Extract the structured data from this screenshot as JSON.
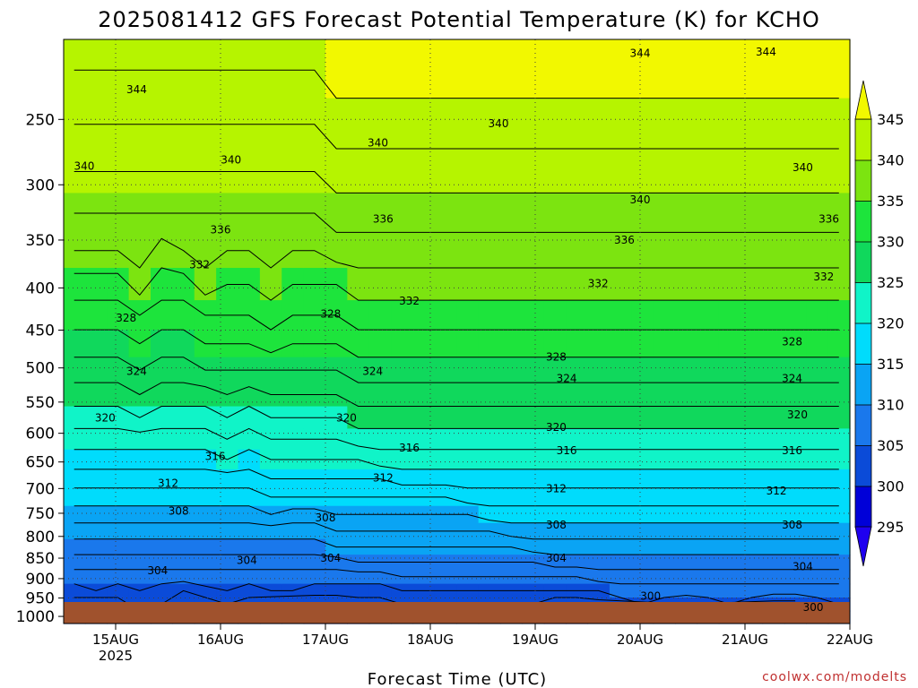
{
  "chart_data": {
    "type": "heatmap",
    "title": "2025081412 GFS Forecast Potential Temperature (K) for KCHO",
    "xlabel": "Forecast Time (UTC)",
    "ylabel": "",
    "x_categories": [
      "15AUG",
      "16AUG",
      "17AUG",
      "18AUG",
      "19AUG",
      "20AUG",
      "21AUG",
      "22AUG"
    ],
    "x_year_label": "2025",
    "x_range_days": [
      -0.5,
      7.0
    ],
    "y_scale": "log-pressure",
    "y_ticks": [
      250,
      300,
      350,
      400,
      450,
      500,
      550,
      600,
      650,
      700,
      750,
      800,
      850,
      900,
      950,
      1000
    ],
    "y_range": [
      200,
      1020
    ],
    "colorbar": {
      "ticks": [
        295,
        300,
        305,
        310,
        315,
        320,
        325,
        330,
        335,
        340,
        345
      ],
      "colors": [
        "#1f00ef",
        "#0000d8",
        "#0b4bd8",
        "#1a78ec",
        "#0aa4f4",
        "#00dcfc",
        "#10f4c8",
        "#10d85c",
        "#1de43c",
        "#7ce410",
        "#b6f400",
        "#f2f800"
      ],
      "extend": "both"
    },
    "contour_interval": 2,
    "series": [
      {
        "values": [
          [
            344,
            342,
            340,
            338,
            336,
            333,
            331,
            329,
            327,
            325,
            323,
            321,
            319,
            317,
            315,
            313,
            311,
            309,
            307,
            305,
            303,
            301,
            300
          ],
          [
            344,
            342,
            340,
            338,
            336,
            333,
            331,
            329,
            327,
            325,
            323,
            321,
            319,
            317,
            315,
            313,
            311,
            309,
            307,
            305,
            304,
            303,
            302
          ],
          [
            344,
            342,
            340,
            338,
            336,
            333,
            331,
            329,
            327,
            325,
            323,
            321,
            319,
            317,
            315,
            313,
            311,
            309,
            307,
            305,
            303,
            301,
            300
          ],
          [
            344,
            342,
            340,
            338,
            337,
            335,
            332,
            330,
            328,
            326,
            324,
            321,
            319,
            317,
            315,
            313,
            311,
            309,
            307,
            305,
            304,
            303,
            301
          ],
          [
            344,
            342,
            340,
            338,
            335,
            333,
            331,
            329,
            327,
            325,
            323,
            321,
            319,
            317,
            315,
            313,
            311,
            309,
            307,
            305,
            303,
            302,
            301
          ],
          [
            344,
            342,
            340,
            338,
            336,
            333,
            331,
            329,
            327,
            325,
            323,
            321,
            319,
            317,
            315,
            313,
            311,
            309,
            307,
            305,
            302,
            301,
            301
          ],
          [
            344,
            342,
            340,
            338,
            337,
            335,
            332,
            330,
            328,
            325,
            323,
            321,
            319,
            317,
            315,
            313,
            311,
            309,
            307,
            305,
            304,
            304,
            304
          ],
          [
            344,
            342,
            340,
            338,
            336,
            334,
            332,
            330,
            328,
            326,
            324,
            322,
            320,
            317,
            315,
            313,
            311,
            309,
            307,
            305,
            304,
            302,
            301
          ],
          [
            344,
            342,
            340,
            338,
            336,
            334,
            332,
            330,
            328,
            325,
            323,
            321,
            319,
            317,
            315,
            313,
            311,
            309,
            307,
            305,
            303,
            301,
            301
          ],
          [
            344,
            342,
            340,
            338,
            337,
            335,
            333,
            331,
            328,
            326,
            324,
            322,
            320,
            318,
            316,
            314,
            311,
            309,
            307,
            305,
            304,
            303,
            302
          ],
          [
            344,
            342,
            340,
            338,
            336,
            334,
            332,
            330,
            328,
            326,
            324,
            322,
            320,
            318,
            316,
            313,
            311,
            309,
            307,
            305,
            304,
            303,
            302
          ],
          [
            344,
            342,
            340,
            338,
            336,
            334,
            332,
            330,
            328,
            326,
            324,
            322,
            320,
            318,
            316,
            313,
            311,
            309,
            307,
            305,
            303,
            300,
            299
          ],
          [
            345,
            343,
            341,
            339,
            337,
            334,
            332,
            330,
            328,
            326,
            324,
            322,
            320,
            318,
            316,
            314,
            312,
            310,
            307,
            305,
            303,
            300,
            299
          ],
          [
            345,
            343,
            341,
            339,
            337,
            335,
            333,
            331,
            329,
            327,
            325,
            323,
            320,
            318,
            316,
            314,
            312,
            310,
            308,
            305,
            303,
            301,
            299
          ],
          [
            345,
            343,
            341,
            339,
            337,
            335,
            333,
            331,
            329,
            327,
            325,
            323,
            321,
            318,
            316,
            314,
            312,
            310,
            308,
            305,
            303,
            301,
            300
          ],
          [
            345,
            343,
            341,
            339,
            337,
            335,
            333,
            331,
            329,
            327,
            325,
            323,
            321,
            319,
            316,
            314,
            312,
            310,
            308,
            306,
            304,
            302,
            301
          ],
          [
            345,
            343,
            341,
            339,
            337,
            335,
            333,
            331,
            329,
            327,
            325,
            323,
            321,
            319,
            316,
            314,
            312,
            310,
            308,
            306,
            304,
            303,
            302
          ],
          [
            345,
            343,
            341,
            339,
            337,
            335,
            333,
            331,
            329,
            327,
            325,
            323,
            321,
            319,
            316,
            314,
            312,
            310,
            308,
            306,
            304,
            303,
            303
          ],
          [
            345,
            343,
            341,
            339,
            337,
            335,
            333,
            331,
            329,
            327,
            325,
            323,
            321,
            319,
            317,
            314,
            312,
            310,
            308,
            306,
            304,
            302,
            301
          ],
          [
            345,
            343,
            341,
            339,
            337,
            335,
            333,
            331,
            329,
            327,
            325,
            323,
            321,
            319,
            317,
            315,
            312,
            310,
            308,
            306,
            304,
            302,
            302
          ],
          [
            345,
            343,
            341,
            339,
            337,
            335,
            333,
            331,
            329,
            327,
            325,
            323,
            321,
            319,
            317,
            315,
            313,
            310,
            308,
            306,
            304,
            303,
            302
          ],
          [
            345,
            343,
            341,
            339,
            337,
            335,
            333,
            331,
            329,
            327,
            325,
            323,
            321,
            319,
            317,
            315,
            313,
            311,
            308,
            306,
            304,
            302,
            301
          ],
          [
            345,
            343,
            341,
            339,
            337,
            335,
            333,
            331,
            329,
            327,
            325,
            323,
            321,
            319,
            317,
            315,
            313,
            311,
            309,
            306,
            304,
            300,
            299
          ],
          [
            345,
            343,
            341,
            339,
            337,
            335,
            333,
            331,
            329,
            327,
            325,
            323,
            321,
            319,
            317,
            315,
            313,
            311,
            309,
            306,
            304,
            300,
            299
          ],
          [
            345,
            343,
            341,
            339,
            337,
            335,
            333,
            331,
            329,
            327,
            325,
            323,
            321,
            319,
            317,
            315,
            313,
            311,
            309,
            307,
            304,
            301,
            300
          ],
          [
            345,
            343,
            341,
            339,
            337,
            335,
            333,
            331,
            329,
            327,
            325,
            323,
            321,
            319,
            317,
            315,
            313,
            311,
            309,
            307,
            305,
            303,
            302
          ],
          [
            345,
            343,
            341,
            339,
            337,
            335,
            333,
            331,
            329,
            327,
            325,
            323,
            321,
            319,
            317,
            315,
            313,
            311,
            309,
            307,
            305,
            304,
            303
          ],
          [
            345,
            343,
            341,
            339,
            337,
            335,
            333,
            331,
            329,
            327,
            325,
            323,
            321,
            319,
            317,
            315,
            313,
            311,
            309,
            307,
            305,
            303,
            302
          ],
          [
            345,
            343,
            341,
            339,
            337,
            335,
            333,
            331,
            329,
            327,
            325,
            323,
            321,
            319,
            317,
            315,
            313,
            311,
            309,
            307,
            305,
            302,
            301
          ],
          [
            345,
            343,
            341,
            339,
            337,
            335,
            333,
            331,
            329,
            327,
            325,
            323,
            321,
            319,
            317,
            315,
            313,
            311,
            309,
            307,
            305,
            303,
            302
          ],
          [
            345,
            343,
            341,
            339,
            337,
            335,
            333,
            331,
            329,
            327,
            325,
            323,
            321,
            319,
            317,
            315,
            313,
            311,
            309,
            307,
            305,
            304,
            303
          ],
          [
            345,
            343,
            341,
            339,
            337,
            335,
            333,
            331,
            329,
            327,
            325,
            323,
            321,
            319,
            317,
            315,
            313,
            311,
            309,
            307,
            305,
            303,
            302
          ],
          [
            345,
            343,
            341,
            339,
            337,
            335,
            333,
            331,
            329,
            327,
            325,
            323,
            321,
            319,
            317,
            315,
            313,
            311,
            309,
            307,
            305,
            301,
            300
          ],
          [
            345,
            343,
            341,
            339,
            337,
            335,
            333,
            331,
            329,
            327,
            325,
            323,
            321,
            319,
            317,
            315,
            313,
            311,
            309,
            307,
            305,
            301,
            300
          ],
          [
            345,
            343,
            341,
            339,
            337,
            335,
            333,
            331,
            329,
            327,
            325,
            323,
            321,
            319,
            317,
            315,
            313,
            311,
            309,
            307,
            305,
            303,
            302
          ],
          [
            345,
            343,
            341,
            339,
            337,
            335,
            333,
            331,
            329,
            327,
            325,
            323,
            321,
            319,
            317,
            315,
            313,
            311,
            309,
            307,
            305,
            304,
            303
          ]
        ]
      }
    ],
    "contour_labels": [
      {
        "text": "344",
        "day": 0.2,
        "p": 230
      },
      {
        "text": "340",
        "day": -0.3,
        "p": 285
      },
      {
        "text": "340",
        "day": 1.1,
        "p": 280
      },
      {
        "text": "336",
        "day": 1.0,
        "p": 340
      },
      {
        "text": "332",
        "day": 0.8,
        "p": 375
      },
      {
        "text": "328",
        "day": 0.1,
        "p": 435
      },
      {
        "text": "324",
        "day": 0.2,
        "p": 505
      },
      {
        "text": "320",
        "day": -0.1,
        "p": 575
      },
      {
        "text": "316",
        "day": 0.95,
        "p": 640
      },
      {
        "text": "312",
        "day": 0.5,
        "p": 690
      },
      {
        "text": "308",
        "day": 0.6,
        "p": 745
      },
      {
        "text": "304",
        "day": 0.4,
        "p": 880
      },
      {
        "text": "304",
        "day": 1.25,
        "p": 855
      },
      {
        "text": "328",
        "day": 2.05,
        "p": 430
      },
      {
        "text": "308",
        "day": 2.0,
        "p": 760
      },
      {
        "text": "304",
        "day": 2.05,
        "p": 850
      },
      {
        "text": "340",
        "day": 2.5,
        "p": 267
      },
      {
        "text": "336",
        "day": 2.55,
        "p": 330
      },
      {
        "text": "332",
        "day": 2.8,
        "p": 415
      },
      {
        "text": "324",
        "day": 2.45,
        "p": 505
      },
      {
        "text": "320",
        "day": 2.2,
        "p": 575
      },
      {
        "text": "312",
        "day": 2.55,
        "p": 680
      },
      {
        "text": "316",
        "day": 2.8,
        "p": 625
      },
      {
        "text": "340",
        "day": 3.65,
        "p": 253
      },
      {
        "text": "328",
        "day": 4.2,
        "p": 485
      },
      {
        "text": "324",
        "day": 4.3,
        "p": 515
      },
      {
        "text": "320",
        "day": 4.2,
        "p": 590
      },
      {
        "text": "316",
        "day": 4.3,
        "p": 630
      },
      {
        "text": "312",
        "day": 4.2,
        "p": 700
      },
      {
        "text": "308",
        "day": 4.2,
        "p": 775
      },
      {
        "text": "304",
        "day": 4.2,
        "p": 850
      },
      {
        "text": "332",
        "day": 4.6,
        "p": 395
      },
      {
        "text": "344",
        "day": 5.0,
        "p": 208
      },
      {
        "text": "340",
        "day": 5.0,
        "p": 313
      },
      {
        "text": "336",
        "day": 4.85,
        "p": 350
      },
      {
        "text": "300",
        "day": 5.1,
        "p": 945
      },
      {
        "text": "344",
        "day": 6.2,
        "p": 207
      },
      {
        "text": "340",
        "day": 6.55,
        "p": 286
      },
      {
        "text": "336",
        "day": 6.8,
        "p": 330
      },
      {
        "text": "332",
        "day": 6.75,
        "p": 388
      },
      {
        "text": "328",
        "day": 6.45,
        "p": 465
      },
      {
        "text": "324",
        "day": 6.45,
        "p": 515
      },
      {
        "text": "320",
        "day": 6.5,
        "p": 570
      },
      {
        "text": "316",
        "day": 6.45,
        "p": 630
      },
      {
        "text": "312",
        "day": 6.3,
        "p": 705
      },
      {
        "text": "308",
        "day": 6.45,
        "p": 775
      },
      {
        "text": "304",
        "day": 6.55,
        "p": 870
      },
      {
        "text": "300",
        "day": 6.65,
        "p": 975
      }
    ]
  },
  "credit": "coolwx.com/modelts"
}
